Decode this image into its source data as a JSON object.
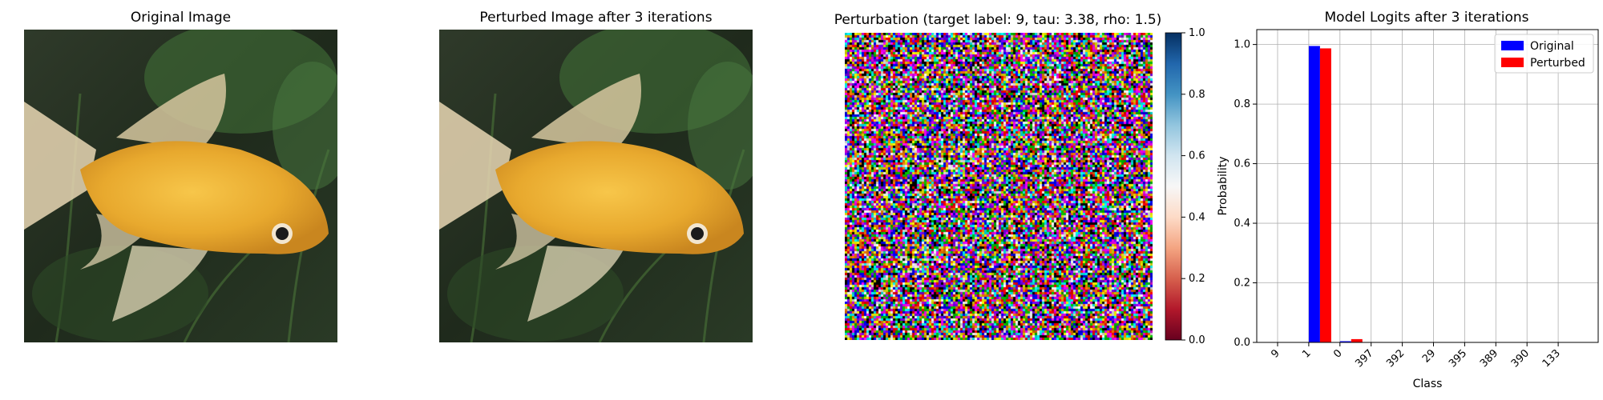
{
  "panels": {
    "original": {
      "title": "Original Image"
    },
    "perturbed": {
      "title": "Perturbed Image after 3 iterations"
    },
    "perturbation": {
      "title": "Perturbation (target label: 9, tau: 3.38, rho: 1.5)"
    }
  },
  "colorbar": {
    "ticks": [
      "0.0",
      "0.2",
      "0.4",
      "0.6",
      "0.8",
      "1.0"
    ],
    "colormap": "RdBu",
    "colors": {
      "low": "#67001f",
      "mid": "#f7f7f7",
      "high": "#053061"
    }
  },
  "chart_data": {
    "type": "bar",
    "title": "Model Logits after 3 iterations",
    "xlabel": "Class",
    "ylabel": "Probability",
    "ylim": [
      0,
      1.05
    ],
    "yticks": [
      "0.0",
      "0.2",
      "0.4",
      "0.6",
      "0.8",
      "1.0"
    ],
    "categories": [
      "9",
      "1",
      "0",
      "397",
      "392",
      "29",
      "395",
      "389",
      "390",
      "133"
    ],
    "series": [
      {
        "name": "Original",
        "color": "#0000ff",
        "values": [
          0.0,
          0.995,
          0.004,
          0.0,
          0.0,
          0.0,
          0.0,
          0.0,
          0.0,
          0.0
        ]
      },
      {
        "name": "Perturbed",
        "color": "#ff0000",
        "values": [
          0.0,
          0.987,
          0.011,
          0.0,
          0.0,
          0.0,
          0.0,
          0.0,
          0.0,
          0.0
        ]
      }
    ],
    "grid": true,
    "legend": "top-right"
  }
}
